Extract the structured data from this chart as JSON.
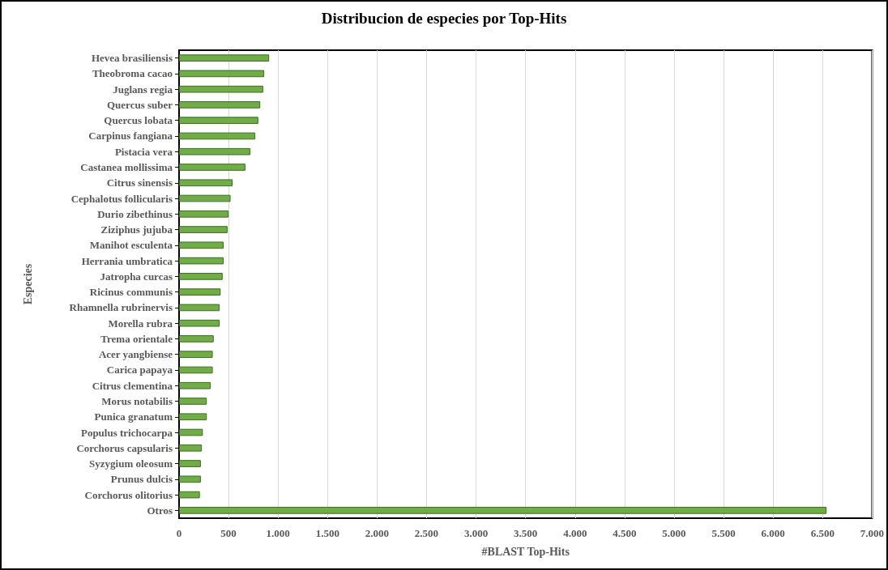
{
  "chart_data": {
    "type": "bar",
    "orientation": "horizontal",
    "title": "Distribucion de especies por Top-Hits",
    "xlabel": "#BLAST Top-Hits",
    "ylabel": "Especies",
    "categories": [
      "Hevea brasiliensis",
      "Theobroma cacao",
      "Juglans regia",
      "Quercus suber",
      "Quercus lobata",
      "Carpinus fangiana",
      "Pistacia vera",
      "Castanea mollissima",
      "Citrus sinensis",
      "Cephalotus follicularis",
      "Durio zibethinus",
      "Ziziphus jujuba",
      "Manihot esculenta",
      "Herrania umbratica",
      "Jatropha curcas",
      "Ricinus communis",
      "Rhamnella rubrinervis",
      "Morella rubra",
      "Trema orientale",
      "Acer yangbiense",
      "Carica papaya",
      "Citrus clementina",
      "Morus notabilis",
      "Punica granatum",
      "Populus trichocarpa",
      "Corchorus capsularis",
      "Syzygium oleosum",
      "Prunus dulcis",
      "Corchorus olitorius",
      "Otros"
    ],
    "values": [
      910,
      860,
      850,
      820,
      800,
      770,
      720,
      670,
      540,
      520,
      500,
      490,
      450,
      450,
      440,
      420,
      410,
      410,
      350,
      340,
      340,
      320,
      280,
      280,
      240,
      230,
      220,
      220,
      210,
      6540
    ],
    "color": "#70ad47",
    "xlim": [
      0,
      7000
    ],
    "xticks": [
      0,
      500,
      {
        "value": 1000,
        "label": "1.000"
      },
      {
        "value": 1500,
        "label": "1.500"
      },
      {
        "value": 2000,
        "label": "2.000"
      },
      {
        "value": 2500,
        "label": "2.500"
      },
      {
        "value": 3000,
        "label": "3.000"
      },
      {
        "value": 3500,
        "label": "3.500"
      },
      {
        "value": 4000,
        "label": "4.000"
      },
      {
        "value": 4500,
        "label": "4.500"
      },
      {
        "value": 5000,
        "label": "5.000"
      },
      {
        "value": 5500,
        "label": "5.500"
      },
      {
        "value": 6000,
        "label": "6.000"
      },
      {
        "value": 6500,
        "label": "6.500"
      },
      {
        "value": 7000,
        "label": "7.000"
      }
    ],
    "grid": "x"
  }
}
